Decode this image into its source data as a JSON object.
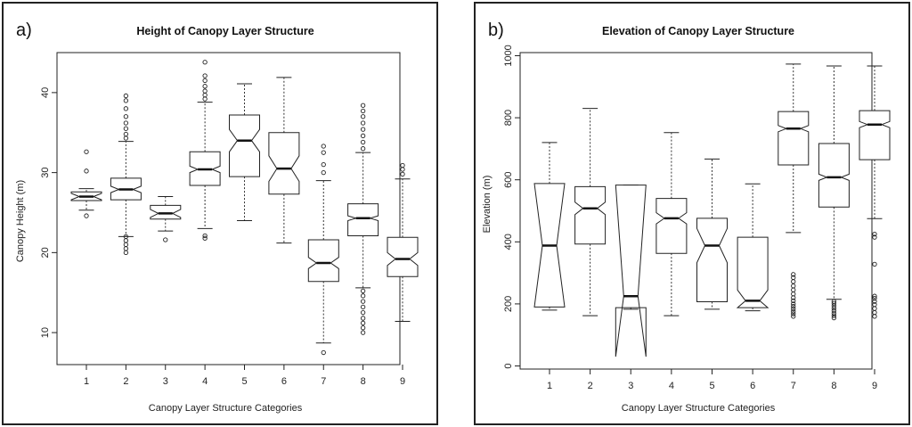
{
  "chart_data": [
    {
      "type": "boxplot",
      "panel_label": "a)",
      "title": "Height of Canopy Layer Structure",
      "xlabel": "Canopy Layer Structure Categories",
      "ylabel": "Canopy Height (m)",
      "ylim": [
        6,
        45
      ],
      "yticks": [
        10,
        20,
        30,
        40
      ],
      "categories": [
        "1",
        "2",
        "3",
        "4",
        "5",
        "6",
        "7",
        "8",
        "9"
      ],
      "boxes": [
        {
          "category": "1",
          "min": 25.3,
          "q1": 26.5,
          "median": 27.0,
          "q3": 27.6,
          "max": 28.0,
          "notch_low": 26.6,
          "notch_high": 27.4,
          "outliers": [
            24.6,
            30.2,
            32.6
          ]
        },
        {
          "category": "2",
          "min": 22.0,
          "q1": 26.6,
          "median": 27.9,
          "q3": 29.3,
          "max": 33.9,
          "notch_low": 27.5,
          "notch_high": 28.3,
          "outliers": [
            20.0,
            20.5,
            21.0,
            21.5,
            22.0,
            34.3,
            34.8,
            35.5,
            36.2,
            37.0,
            38.0,
            39.0,
            39.6
          ]
        },
        {
          "category": "3",
          "min": 22.7,
          "q1": 24.2,
          "median": 24.9,
          "q3": 25.9,
          "max": 27.0,
          "notch_low": 24.4,
          "notch_high": 25.4,
          "outliers": [
            21.6
          ]
        },
        {
          "category": "4",
          "min": 23.0,
          "q1": 28.4,
          "median": 30.4,
          "q3": 32.6,
          "max": 38.8,
          "notch_low": 30.0,
          "notch_high": 30.8,
          "outliers": [
            21.8,
            22.1,
            39.2,
            39.7,
            40.2,
            40.8,
            41.5,
            42.1,
            43.8
          ]
        },
        {
          "category": "5",
          "min": 24.0,
          "q1": 29.5,
          "median": 34.0,
          "q3": 37.2,
          "max": 41.1,
          "notch_low": 32.6,
          "notch_high": 35.4,
          "outliers": []
        },
        {
          "category": "6",
          "min": 21.2,
          "q1": 27.3,
          "median": 30.5,
          "q3": 35.0,
          "max": 41.9,
          "notch_low": 28.9,
          "notch_high": 32.1,
          "outliers": []
        },
        {
          "category": "7",
          "min": 8.7,
          "q1": 16.4,
          "median": 18.7,
          "q3": 21.6,
          "max": 29.0,
          "notch_low": 18.0,
          "notch_high": 19.4,
          "outliers": [
            7.5,
            30.0,
            31.0,
            32.5,
            33.3
          ]
        },
        {
          "category": "8",
          "min": 15.6,
          "q1": 22.1,
          "median": 24.3,
          "q3": 26.1,
          "max": 32.5,
          "notch_low": 24.0,
          "notch_high": 24.6,
          "outliers": [
            10.0,
            10.6,
            11.2,
            11.8,
            12.5,
            13.2,
            13.9,
            14.6,
            15.2,
            33.0,
            33.8,
            34.6,
            35.4,
            36.2,
            37.0,
            37.7,
            38.4
          ]
        },
        {
          "category": "9",
          "min": 11.4,
          "q1": 17.0,
          "median": 19.2,
          "q3": 21.9,
          "max": 29.2,
          "notch_low": 18.4,
          "notch_high": 20.0,
          "outliers": [
            29.8,
            30.4,
            30.9
          ]
        }
      ]
    },
    {
      "type": "boxplot",
      "panel_label": "b)",
      "title": "Elevation of Canopy Layer Structure",
      "xlabel": "Canopy Layer Structure Categories",
      "ylabel": "Elevation (m)",
      "ylim": [
        -10,
        1010
      ],
      "yticks": [
        0,
        200,
        400,
        600,
        800,
        1000
      ],
      "categories": [
        "1",
        "2",
        "3",
        "4",
        "5",
        "6",
        "7",
        "8",
        "9"
      ],
      "boxes": [
        {
          "category": "1",
          "min": 180,
          "q1": 190,
          "median": 388,
          "q3": 588,
          "max": 720,
          "notch_low": 190,
          "notch_high": 588,
          "outliers": []
        },
        {
          "category": "2",
          "min": 162,
          "q1": 393,
          "median": 508,
          "q3": 578,
          "max": 830,
          "notch_low": 488,
          "notch_high": 528,
          "outliers": []
        },
        {
          "category": "3",
          "min": 183,
          "q1": 188,
          "median": 225,
          "q3": 583,
          "max": 583,
          "notch_low": 30,
          "notch_high": 583,
          "outliers": []
        },
        {
          "category": "4",
          "min": 162,
          "q1": 363,
          "median": 476,
          "q3": 540,
          "max": 752,
          "notch_low": 458,
          "notch_high": 494,
          "outliers": []
        },
        {
          "category": "5",
          "min": 183,
          "q1": 207,
          "median": 388,
          "q3": 476,
          "max": 667,
          "notch_low": 333,
          "notch_high": 443,
          "outliers": []
        },
        {
          "category": "6",
          "min": 178,
          "q1": 188,
          "median": 210,
          "q3": 415,
          "max": 587,
          "notch_low": 188,
          "notch_high": 245,
          "outliers": []
        },
        {
          "category": "7",
          "min": 430,
          "q1": 648,
          "median": 765,
          "q3": 820,
          "max": 973,
          "notch_low": 755,
          "notch_high": 775,
          "outliers": [
            160,
            168,
            176,
            184,
            192,
            200,
            210,
            220,
            232,
            245,
            258,
            272,
            285,
            295
          ]
        },
        {
          "category": "8",
          "min": 215,
          "q1": 512,
          "median": 608,
          "q3": 717,
          "max": 967,
          "notch_low": 598,
          "notch_high": 618,
          "outliers": [
            155,
            162,
            170,
            178,
            186,
            194,
            202,
            208
          ]
        },
        {
          "category": "9",
          "min": 475,
          "q1": 665,
          "median": 778,
          "q3": 823,
          "max": 967,
          "notch_low": 768,
          "notch_high": 788,
          "outliers": [
            160,
            172,
            185,
            198,
            208,
            218,
            225,
            328,
            415,
            425
          ]
        }
      ]
    }
  ]
}
